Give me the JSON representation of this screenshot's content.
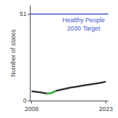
{
  "chart_data": {
    "type": "line",
    "ylabel": "Number of states",
    "x": [
      2008,
      2009,
      2010,
      2011,
      2012,
      2013,
      2014,
      2015,
      2016,
      2017,
      2018,
      2019,
      2020,
      2021,
      2022,
      2023
    ],
    "series": [
      {
        "color": "#333333",
        "values": [
          5.5,
          5.2,
          4.8,
          4.2,
          4.5,
          5.8,
          6.5,
          7.2,
          7.8,
          8.2,
          8.8,
          9.2,
          9.6,
          10.0,
          10.5,
          11.2
        ]
      },
      {
        "color": "#44bb44",
        "values": [
          null,
          null,
          null,
          4.2,
          4.5,
          5.8,
          null,
          null,
          null,
          null,
          null,
          null,
          null,
          null,
          null,
          null
        ]
      }
    ],
    "target": {
      "value": 51,
      "label": "Healthy People\n2030 Target",
      "color": "#4455cc"
    },
    "xlim": [
      2007.8,
      2023.5
    ],
    "ylim": [
      0,
      56
    ],
    "xticks": [
      2008,
      2023
    ],
    "yticks": [
      0,
      51
    ],
    "grid": false
  }
}
